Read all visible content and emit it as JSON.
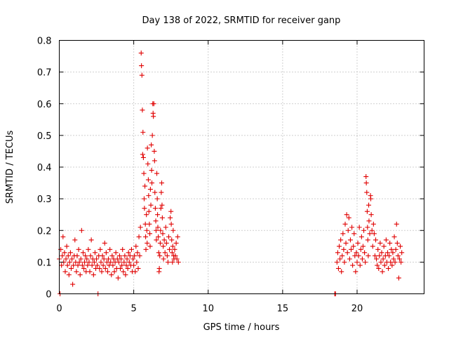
{
  "chart_data": {
    "type": "scatter",
    "title": "Day 138 of 2022, SRMTID for receiver ganp",
    "xlabel": "GPS time / hours",
    "ylabel": "SRMTID / TECUs",
    "xlim": [
      0,
      24.5
    ],
    "ylim": [
      0,
      0.8
    ],
    "xticks": [
      0,
      5,
      10,
      15,
      20
    ],
    "xtick_labels": [
      "0",
      "5",
      "10",
      "15",
      "20"
    ],
    "yticks": [
      0,
      0.1,
      0.2,
      0.3,
      0.4,
      0.5,
      0.6,
      0.7,
      0.8
    ],
    "ytick_labels": [
      "0",
      "0.1",
      "0.2",
      "0.3",
      "0.4",
      "0.5",
      "0.6",
      "0.7",
      "0.8"
    ],
    "grid": true,
    "marker": "+",
    "color": "#e00000",
    "series": [
      {
        "name": "SRMTID",
        "points": [
          [
            0.0,
            0.11
          ],
          [
            0.05,
            0.0
          ],
          [
            0.1,
            0.14
          ],
          [
            0.15,
            0.09
          ],
          [
            0.2,
            0.12
          ],
          [
            0.25,
            0.18
          ],
          [
            0.3,
            0.1
          ],
          [
            0.35,
            0.13
          ],
          [
            0.4,
            0.07
          ],
          [
            0.45,
            0.11
          ],
          [
            0.5,
            0.15
          ],
          [
            0.55,
            0.09
          ],
          [
            0.6,
            0.12
          ],
          [
            0.65,
            0.06
          ],
          [
            0.7,
            0.1
          ],
          [
            0.75,
            0.13
          ],
          [
            0.8,
            0.08
          ],
          [
            0.85,
            0.11
          ],
          [
            0.9,
            0.03
          ],
          [
            0.95,
            0.09
          ],
          [
            1.0,
            0.12
          ],
          [
            1.05,
            0.17
          ],
          [
            1.1,
            0.1
          ],
          [
            1.15,
            0.07
          ],
          [
            1.2,
            0.12
          ],
          [
            1.25,
            0.09
          ],
          [
            1.3,
            0.14
          ],
          [
            1.35,
            0.1
          ],
          [
            1.4,
            0.06
          ],
          [
            1.45,
            0.11
          ],
          [
            1.5,
            0.2
          ],
          [
            1.55,
            0.09
          ],
          [
            1.6,
            0.13
          ],
          [
            1.65,
            0.08
          ],
          [
            1.7,
            0.1
          ],
          [
            1.75,
            0.12
          ],
          [
            1.8,
            0.07
          ],
          [
            1.85,
            0.11
          ],
          [
            1.9,
            0.09
          ],
          [
            1.95,
            0.14
          ],
          [
            2.0,
            0.1
          ],
          [
            2.05,
            0.07
          ],
          [
            2.1,
            0.12
          ],
          [
            2.15,
            0.17
          ],
          [
            2.2,
            0.09
          ],
          [
            2.25,
            0.11
          ],
          [
            2.3,
            0.06
          ],
          [
            2.35,
            0.1
          ],
          [
            2.4,
            0.13
          ],
          [
            2.45,
            0.08
          ],
          [
            2.5,
            0.11
          ],
          [
            2.55,
            0.09
          ],
          [
            2.6,
            0.0
          ],
          [
            2.65,
            0.12
          ],
          [
            2.7,
            0.08
          ],
          [
            2.75,
            0.14
          ],
          [
            2.8,
            0.1
          ],
          [
            2.85,
            0.07
          ],
          [
            2.9,
            0.12
          ],
          [
            2.95,
            0.09
          ],
          [
            3.0,
            0.11
          ],
          [
            3.05,
            0.16
          ],
          [
            3.1,
            0.08
          ],
          [
            3.15,
            0.13
          ],
          [
            3.2,
            0.1
          ],
          [
            3.25,
            0.07
          ],
          [
            3.3,
            0.11
          ],
          [
            3.35,
            0.09
          ],
          [
            3.4,
            0.14
          ],
          [
            3.45,
            0.1
          ],
          [
            3.5,
            0.06
          ],
          [
            3.55,
            0.12
          ],
          [
            3.6,
            0.09
          ],
          [
            3.65,
            0.11
          ],
          [
            3.7,
            0.07
          ],
          [
            3.75,
            0.1
          ],
          [
            3.8,
            0.13
          ],
          [
            3.85,
            0.08
          ],
          [
            3.9,
            0.11
          ],
          [
            3.95,
            0.05
          ],
          [
            4.0,
            0.1
          ],
          [
            4.05,
            0.12
          ],
          [
            4.1,
            0.08
          ],
          [
            4.15,
            0.11
          ],
          [
            4.2,
            0.09
          ],
          [
            4.25,
            0.14
          ],
          [
            4.3,
            0.07
          ],
          [
            4.35,
            0.1
          ],
          [
            4.4,
            0.12
          ],
          [
            4.45,
            0.06
          ],
          [
            4.5,
            0.09
          ],
          [
            4.55,
            0.11
          ],
          [
            4.6,
            0.08
          ],
          [
            4.65,
            0.13
          ],
          [
            4.7,
            0.1
          ],
          [
            4.75,
            0.12
          ],
          [
            4.8,
            0.09
          ],
          [
            4.85,
            0.14
          ],
          [
            4.9,
            0.07
          ],
          [
            4.95,
            0.11
          ],
          [
            5.0,
            0.09
          ],
          [
            5.05,
            0.12
          ],
          [
            5.1,
            0.07
          ],
          [
            5.15,
            0.15
          ],
          [
            5.2,
            0.1
          ],
          [
            5.25,
            0.13
          ],
          [
            5.3,
            0.08
          ],
          [
            5.35,
            0.18
          ],
          [
            5.4,
            0.12
          ],
          [
            5.45,
            0.21
          ],
          [
            5.5,
            0.76
          ],
          [
            5.52,
            0.72
          ],
          [
            5.55,
            0.69
          ],
          [
            5.58,
            0.58
          ],
          [
            5.6,
            0.44
          ],
          [
            5.62,
            0.51
          ],
          [
            5.65,
            0.43
          ],
          [
            5.68,
            0.38
          ],
          [
            5.7,
            0.3
          ],
          [
            5.72,
            0.27
          ],
          [
            5.75,
            0.34
          ],
          [
            5.78,
            0.22
          ],
          [
            5.8,
            0.18
          ],
          [
            5.82,
            0.14
          ],
          [
            5.85,
            0.25
          ],
          [
            5.88,
            0.2
          ],
          [
            5.9,
            0.16
          ],
          [
            5.92,
            0.46
          ],
          [
            5.95,
            0.41
          ],
          [
            5.98,
            0.36
          ],
          [
            6.0,
            0.31
          ],
          [
            6.02,
            0.26
          ],
          [
            6.05,
            0.22
          ],
          [
            6.08,
            0.19
          ],
          [
            6.1,
            0.15
          ],
          [
            6.12,
            0.33
          ],
          [
            6.15,
            0.28
          ],
          [
            6.18,
            0.47
          ],
          [
            6.2,
            0.39
          ],
          [
            6.22,
            0.35
          ],
          [
            6.25,
            0.5
          ],
          [
            6.28,
            0.6
          ],
          [
            6.3,
            0.57
          ],
          [
            6.32,
            0.56
          ],
          [
            6.35,
            0.6
          ],
          [
            6.38,
            0.45
          ],
          [
            6.4,
            0.42
          ],
          [
            6.42,
            0.32
          ],
          [
            6.45,
            0.27
          ],
          [
            6.48,
            0.23
          ],
          [
            6.5,
            0.2
          ],
          [
            6.52,
            0.17
          ],
          [
            6.55,
            0.38
          ],
          [
            6.58,
            0.3
          ],
          [
            6.6,
            0.25
          ],
          [
            6.62,
            0.21
          ],
          [
            6.65,
            0.18
          ],
          [
            6.68,
            0.13
          ],
          [
            6.7,
            0.07
          ],
          [
            6.72,
            0.08
          ],
          [
            6.75,
            0.12
          ],
          [
            6.78,
            0.16
          ],
          [
            6.8,
            0.2
          ],
          [
            6.82,
            0.27
          ],
          [
            6.85,
            0.32
          ],
          [
            6.88,
            0.35
          ],
          [
            6.9,
            0.28
          ],
          [
            6.92,
            0.24
          ],
          [
            6.95,
            0.19
          ],
          [
            6.98,
            0.15
          ],
          [
            7.0,
            0.11
          ],
          [
            7.05,
            0.17
          ],
          [
            7.1,
            0.13
          ],
          [
            7.15,
            0.21
          ],
          [
            7.2,
            0.16
          ],
          [
            7.25,
            0.12
          ],
          [
            7.3,
            0.1
          ],
          [
            7.35,
            0.18
          ],
          [
            7.4,
            0.14
          ],
          [
            7.45,
            0.24
          ],
          [
            7.5,
            0.26
          ],
          [
            7.52,
            0.22
          ],
          [
            7.55,
            0.17
          ],
          [
            7.58,
            0.13
          ],
          [
            7.6,
            0.1
          ],
          [
            7.62,
            0.15
          ],
          [
            7.65,
            0.2
          ],
          [
            7.68,
            0.12
          ],
          [
            7.7,
            0.11
          ],
          [
            7.75,
            0.14
          ],
          [
            7.8,
            0.12
          ],
          [
            7.85,
            0.16
          ],
          [
            7.9,
            0.11
          ],
          [
            7.95,
            0.18
          ],
          [
            8.0,
            0.1
          ],
          [
            18.5,
            0.0
          ],
          [
            18.55,
            0.0
          ],
          [
            18.65,
            0.1
          ],
          [
            18.7,
            0.13
          ],
          [
            18.75,
            0.08
          ],
          [
            18.8,
            0.15
          ],
          [
            18.85,
            0.11
          ],
          [
            18.9,
            0.17
          ],
          [
            18.95,
            0.07
          ],
          [
            19.0,
            0.12
          ],
          [
            19.05,
            0.19
          ],
          [
            19.1,
            0.14
          ],
          [
            19.15,
            0.1
          ],
          [
            19.2,
            0.22
          ],
          [
            19.25,
            0.16
          ],
          [
            19.3,
            0.25
          ],
          [
            19.35,
            0.13
          ],
          [
            19.4,
            0.2
          ],
          [
            19.45,
            0.24
          ],
          [
            19.5,
            0.11
          ],
          [
            19.55,
            0.17
          ],
          [
            19.6,
            0.14
          ],
          [
            19.65,
            0.21
          ],
          [
            19.7,
            0.09
          ],
          [
            19.75,
            0.15
          ],
          [
            19.8,
            0.19
          ],
          [
            19.85,
            0.12
          ],
          [
            19.9,
            0.07
          ],
          [
            19.95,
            0.13
          ],
          [
            20.0,
            0.1
          ],
          [
            20.05,
            0.16
          ],
          [
            20.1,
            0.12
          ],
          [
            20.15,
            0.21
          ],
          [
            20.2,
            0.09
          ],
          [
            20.25,
            0.14
          ],
          [
            20.3,
            0.18
          ],
          [
            20.35,
            0.11
          ],
          [
            20.4,
            0.15
          ],
          [
            20.45,
            0.2
          ],
          [
            20.5,
            0.13
          ],
          [
            20.55,
            0.1
          ],
          [
            20.6,
            0.37
          ],
          [
            20.62,
            0.35
          ],
          [
            20.65,
            0.32
          ],
          [
            20.68,
            0.26
          ],
          [
            20.7,
            0.21
          ],
          [
            20.72,
            0.17
          ],
          [
            20.75,
            0.12
          ],
          [
            20.78,
            0.28
          ],
          [
            20.8,
            0.23
          ],
          [
            20.85,
            0.19
          ],
          [
            20.9,
            0.31
          ],
          [
            20.92,
            0.3
          ],
          [
            20.95,
            0.25
          ],
          [
            21.0,
            0.2
          ],
          [
            21.05,
            0.15
          ],
          [
            21.1,
            0.22
          ],
          [
            21.15,
            0.19
          ],
          [
            21.2,
            0.12
          ],
          [
            21.25,
            0.17
          ],
          [
            21.3,
            0.11
          ],
          [
            21.35,
            0.09
          ],
          [
            21.4,
            0.14
          ],
          [
            21.45,
            0.08
          ],
          [
            21.5,
            0.12
          ],
          [
            21.55,
            0.16
          ],
          [
            21.6,
            0.1
          ],
          [
            21.65,
            0.13
          ],
          [
            21.7,
            0.07
          ],
          [
            21.75,
            0.11
          ],
          [
            21.8,
            0.15
          ],
          [
            21.85,
            0.09
          ],
          [
            21.9,
            0.12
          ],
          [
            21.95,
            0.17
          ],
          [
            22.0,
            0.1
          ],
          [
            22.05,
            0.13
          ],
          [
            22.1,
            0.08
          ],
          [
            22.15,
            0.12
          ],
          [
            22.2,
            0.16
          ],
          [
            22.25,
            0.1
          ],
          [
            22.3,
            0.14
          ],
          [
            22.35,
            0.09
          ],
          [
            22.4,
            0.13
          ],
          [
            22.45,
            0.11
          ],
          [
            22.5,
            0.18
          ],
          [
            22.55,
            0.1
          ],
          [
            22.6,
            0.14
          ],
          [
            22.65,
            0.22
          ],
          [
            22.7,
            0.16
          ],
          [
            22.75,
            0.12
          ],
          [
            22.8,
            0.05
          ],
          [
            22.85,
            0.11
          ],
          [
            22.9,
            0.15
          ],
          [
            22.95,
            0.1
          ],
          [
            23.0,
            0.13
          ]
        ]
      }
    ]
  }
}
